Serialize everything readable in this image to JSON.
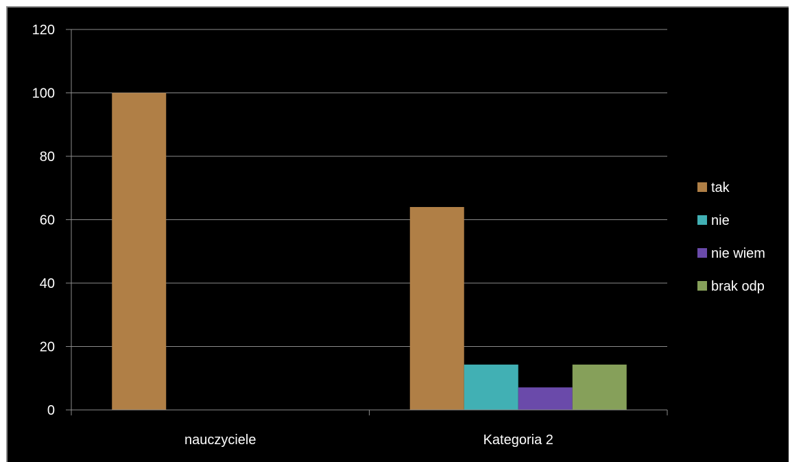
{
  "chart_data": {
    "type": "bar",
    "categories": [
      "nauczyciele",
      "Kategoria 2"
    ],
    "series": [
      {
        "name": "tak",
        "values": [
          100,
          64
        ],
        "color": "#b07f46"
      },
      {
        "name": "nie",
        "values": [
          0,
          14.3
        ],
        "color": "#41b0b4"
      },
      {
        "name": "nie wiem",
        "values": [
          0,
          7.1
        ],
        "color": "#6a4aaa"
      },
      {
        "name": "brak odp",
        "values": [
          0,
          14.3
        ],
        "color": "#86a05a"
      }
    ],
    "ylim": [
      0,
      120
    ],
    "yticks": [
      0,
      20,
      40,
      60,
      80,
      100,
      120
    ],
    "grid": true,
    "legend_position": "right",
    "colors": {
      "background": "#000000",
      "gridline": "#8c8c8c",
      "text": "#ffffff"
    }
  }
}
